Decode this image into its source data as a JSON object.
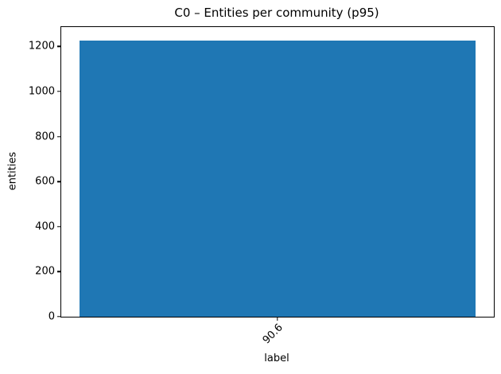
{
  "chart_data": {
    "type": "bar",
    "title": "C0 – Entities per community (p95)",
    "xlabel": "label",
    "ylabel": "entities",
    "categories": [
      "90.6"
    ],
    "values": [
      1225
    ],
    "ylim": [
      0,
      1286
    ],
    "yticks": [
      0,
      200,
      400,
      600,
      800,
      1000,
      1200
    ],
    "xtick_rotation": 45,
    "bar_color": "#1f77b4",
    "bar_width_fraction": 0.915,
    "grid": "off",
    "legend": "none",
    "spine_color": "#000000",
    "background_color": "#ffffff"
  }
}
